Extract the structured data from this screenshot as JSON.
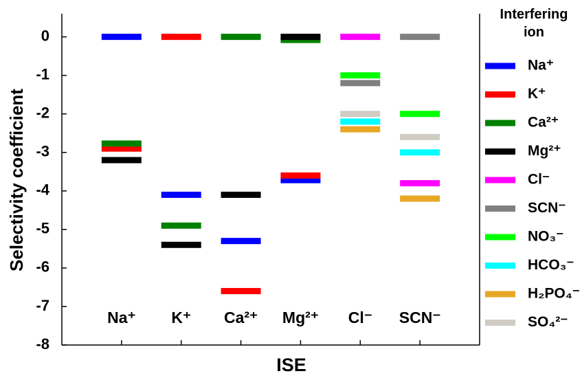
{
  "chart_data": {
    "type": "level",
    "x_label": "ISE",
    "y_label": "Selectivity coefficient",
    "legend_title": "Interfering ion",
    "categories": [
      "Na⁺",
      "K⁺",
      "Ca²⁺",
      "Mg²⁺",
      "Cl⁻",
      "SCN⁻"
    ],
    "ylim": [
      -8,
      0.6
    ],
    "yticks": [
      0,
      -1,
      -2,
      -3,
      -4,
      -5,
      -6,
      -7,
      -8
    ],
    "series": [
      {
        "name": "Na⁺",
        "color": "#0000ff",
        "values": [
          0,
          -4.1,
          -5.3,
          -3.72,
          null,
          null
        ]
      },
      {
        "name": "K⁺",
        "color": "#ff0000",
        "values": [
          -2.9,
          0,
          -6.6,
          -3.6,
          null,
          null
        ]
      },
      {
        "name": "Ca²⁺",
        "color": "#008000",
        "values": [
          -2.77,
          -4.9,
          0,
          -0.08,
          null,
          null
        ]
      },
      {
        "name": "Mg²⁺",
        "color": "#000000",
        "values": [
          -3.2,
          -5.4,
          -4.1,
          0,
          null,
          null
        ]
      },
      {
        "name": "Cl⁻",
        "color": "#ff00ff",
        "values": [
          null,
          null,
          null,
          null,
          0,
          -3.8
        ]
      },
      {
        "name": "SCN⁻",
        "color": "#808080",
        "values": [
          null,
          null,
          null,
          null,
          -1.2,
          0
        ]
      },
      {
        "name": "NO₃⁻",
        "color": "#00ff00",
        "values": [
          null,
          null,
          null,
          null,
          -1.0,
          -2.0
        ]
      },
      {
        "name": "HCO₃⁻",
        "color": "#00ffff",
        "values": [
          null,
          null,
          null,
          null,
          -2.2,
          -3.0
        ]
      },
      {
        "name": "H₂PO₄⁻",
        "color": "#e8a826",
        "values": [
          null,
          null,
          null,
          null,
          -2.4,
          -4.2
        ]
      },
      {
        "name": "SO₄²⁻",
        "color": "#d0ccc4",
        "values": [
          null,
          null,
          null,
          null,
          -2.0,
          -2.6
        ]
      }
    ]
  }
}
